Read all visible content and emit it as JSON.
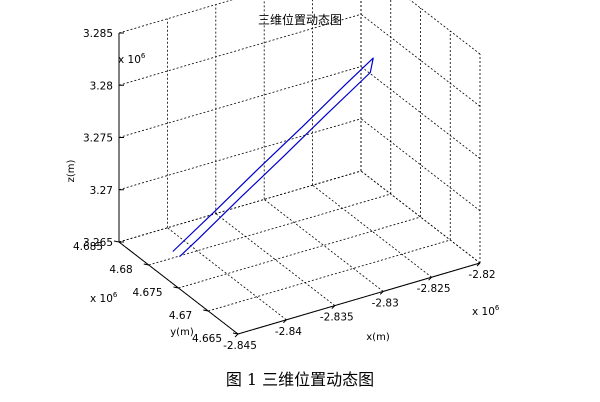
{
  "chart_data": {
    "type": "line3d",
    "title": "三维位置动态图",
    "xlabel": "x(m)",
    "ylabel": "y(m)",
    "zlabel": "z(m)",
    "x_multiplier": "x 10^6",
    "y_multiplier": "x 10^6",
    "z_multiplier": "x 10^6",
    "xlim": [
      -2.845,
      -2.82
    ],
    "ylim": [
      4.665,
      4.685
    ],
    "zlim": [
      3.265,
      3.285
    ],
    "x_ticks": [
      "-2.845",
      "-2.84",
      "-2.835",
      "-2.83",
      "-2.825",
      "-2.82"
    ],
    "y_ticks": [
      "4.665",
      "4.67",
      "4.675",
      "4.68",
      "4.685"
    ],
    "z_ticks": [
      "3.265",
      "3.27",
      "3.275",
      "3.28",
      "3.285"
    ],
    "grid": true,
    "series": [
      {
        "color": "#0000cc",
        "points": [
          {
            "x": -2.8427,
            "y": 4.6797,
            "z": 3.2658
          },
          {
            "x": -2.8397,
            "y": 4.6773,
            "z": 3.27
          },
          {
            "x": -2.8367,
            "y": 4.675,
            "z": 3.2742
          },
          {
            "x": -2.8337,
            "y": 4.6726,
            "z": 3.2784
          },
          {
            "x": -2.8307,
            "y": 4.6703,
            "z": 3.2826
          },
          {
            "x": -2.8287,
            "y": 4.6688,
            "z": 3.2853
          },
          {
            "x": -2.8293,
            "y": 4.6683,
            "z": 3.2843
          },
          {
            "x": -2.8323,
            "y": 4.6707,
            "z": 3.2801
          },
          {
            "x": -2.8353,
            "y": 4.673,
            "z": 3.2759
          },
          {
            "x": -2.8383,
            "y": 4.6754,
            "z": 3.2717
          },
          {
            "x": -2.8413,
            "y": 4.6777,
            "z": 3.2675
          },
          {
            "x": -2.8425,
            "y": 4.6789,
            "z": 3.2656
          }
        ]
      }
    ]
  },
  "caption": "图 1  三维位置动态图"
}
